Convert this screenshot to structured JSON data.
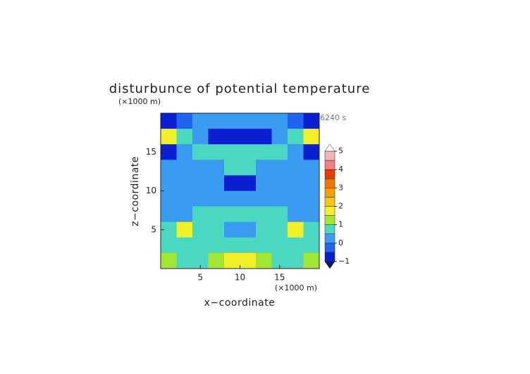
{
  "chart_data": {
    "type": "contour",
    "title": "disturbunce of potential temperature",
    "x_label": "x−coordinate",
    "y_label": "z−coordinate",
    "x_unit": "(×1000 m)",
    "y_unit": "(×1000 m)",
    "annotation": "6240 s",
    "xlim": [
      0,
      20
    ],
    "ylim": [
      0,
      20
    ],
    "xticks": [
      5,
      10,
      15
    ],
    "yticks": [
      5,
      10,
      15
    ],
    "x": [
      1,
      3,
      5,
      7,
      9,
      11,
      13,
      15,
      17,
      19
    ],
    "y": [
      19,
      17,
      15,
      13,
      11,
      9,
      7,
      5,
      3,
      1
    ],
    "z": [
      [
        -0.6,
        -0.3,
        0.2,
        0.2,
        0.2,
        0.2,
        0.2,
        0.2,
        -0.3,
        -0.6
      ],
      [
        1.6,
        0.7,
        0.3,
        -0.6,
        -0.7,
        -0.7,
        -0.6,
        0.3,
        0.7,
        1.6
      ],
      [
        -0.6,
        0.3,
        0.6,
        0.7,
        0.8,
        0.8,
        0.7,
        0.6,
        0.3,
        -0.6
      ],
      [
        0.2,
        0.2,
        0.2,
        0.3,
        0.7,
        0.7,
        0.3,
        0.2,
        0.2,
        0.2
      ],
      [
        0.2,
        0.2,
        0.2,
        0.2,
        -0.6,
        -0.6,
        0.2,
        0.2,
        0.2,
        0.2
      ],
      [
        0.2,
        0.2,
        0.2,
        0.2,
        0.4,
        0.4,
        0.2,
        0.2,
        0.2,
        0.2
      ],
      [
        0.3,
        0.4,
        0.6,
        0.8,
        0.7,
        0.7,
        0.8,
        0.6,
        0.4,
        0.3
      ],
      [
        0.7,
        1.6,
        0.8,
        0.6,
        0.4,
        0.4,
        0.6,
        0.8,
        1.6,
        0.7
      ],
      [
        0.8,
        0.5,
        0.6,
        0.7,
        0.8,
        0.8,
        0.7,
        0.6,
        0.5,
        0.8
      ],
      [
        1.2,
        0.7,
        0.8,
        1.0,
        1.6,
        1.6,
        1.0,
        0.8,
        0.7,
        1.2
      ]
    ],
    "levels": [
      -1,
      -0.5,
      0,
      0.5,
      1,
      1.5,
      2,
      2.5,
      3,
      3.5,
      4,
      4.5,
      5
    ],
    "colors": [
      "#0a1ed2",
      "#1e64f0",
      "#3a9cf0",
      "#4ad8c0",
      "#a0e632",
      "#f0f028",
      "#f5c814",
      "#f5a000",
      "#f07800",
      "#e63c00",
      "#f08080",
      "#f5b4b4"
    ],
    "under_color": "#0a1470",
    "over_color": "#ffffff",
    "cbticks": [
      {
        "value": -1,
        "label": "−1"
      },
      0,
      1,
      2,
      3,
      4,
      5
    ]
  }
}
